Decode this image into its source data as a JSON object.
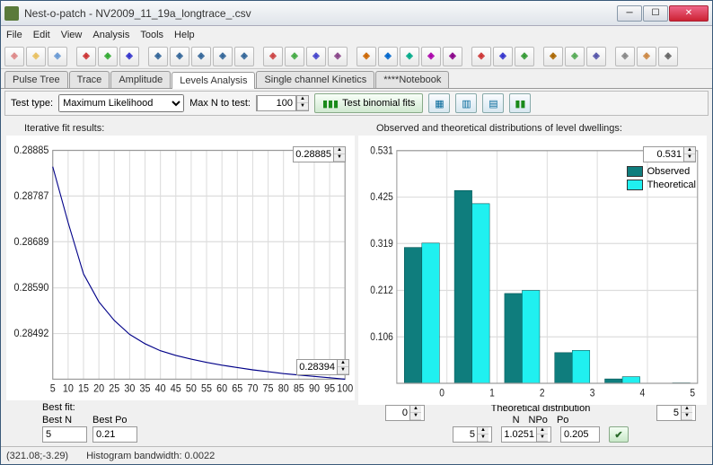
{
  "window": {
    "title": "Nest-o-patch - NV2009_11_19a_longtrace_.csv"
  },
  "menu": [
    "File",
    "Edit",
    "View",
    "Analysis",
    "Tools",
    "Help"
  ],
  "tabs": [
    "Pulse Tree",
    "Trace",
    "Amplitude",
    "Levels Analysis",
    "Single channel Kinetics",
    "****Notebook"
  ],
  "active_tab": 3,
  "controls": {
    "test_type_label": "Test type:",
    "test_type_value": "Maximum Likelihood",
    "maxn_label": "Max N to test:",
    "maxn_value": "100",
    "test_button": "Test binomial fits"
  },
  "left": {
    "title": "Iterative fit results:",
    "chart": {
      "type": "line",
      "x": [
        5,
        10,
        15,
        20,
        25,
        30,
        35,
        40,
        45,
        50,
        55,
        60,
        65,
        70,
        75,
        80,
        85,
        90,
        95,
        100
      ],
      "y": [
        0.2885,
        0.2873,
        0.2862,
        0.2856,
        0.2852,
        0.2849,
        0.2847,
        0.28455,
        0.28445,
        0.28437,
        0.2843,
        0.28424,
        0.28419,
        0.28414,
        0.2841,
        0.28406,
        0.28403,
        0.284,
        0.28397,
        0.28394
      ],
      "line_color": "#000088",
      "line_width": 1,
      "xlim": [
        5,
        100
      ],
      "ylim": [
        0.28394,
        0.28885
      ],
      "yticks": [
        0.28492,
        0.2859,
        0.28689,
        0.28787,
        0.28885
      ],
      "xticks": [
        5,
        10,
        15,
        20,
        25,
        30,
        35,
        40,
        45,
        50,
        55,
        60,
        65,
        70,
        75,
        80,
        85,
        90,
        95,
        100
      ],
      "grid_color": "#dddddd",
      "background": "#ffffff",
      "spin_hi": "0.28885",
      "spin_lo": "0.28394"
    },
    "bestfit_label": "Best fit:",
    "bestN_label": "Best N",
    "bestN_value": "5",
    "bestPo_label": "Best Po",
    "bestPo_value": "0.21"
  },
  "right": {
    "title": "Observed and theoretical distributions of level dwellings:",
    "chart": {
      "type": "grouped-bar",
      "categories": [
        "0",
        "1",
        "2",
        "3",
        "4",
        "5"
      ],
      "series": [
        {
          "name": "Observed",
          "color": "#0f7d7d",
          "values": [
            0.31,
            0.44,
            0.205,
            0.07,
            0.01,
            0.0
          ]
        },
        {
          "name": "Theoretical",
          "color": "#20f0f0",
          "values": [
            0.32,
            0.41,
            0.212,
            0.075,
            0.015,
            0.001
          ]
        }
      ],
      "ylim": [
        0,
        0.531
      ],
      "yticks": [
        0.106,
        0.212,
        0.319,
        0.425,
        0.531
      ],
      "xlim": [
        0,
        5
      ],
      "grid_color": "#dddddd",
      "background": "#ffffff",
      "spin_hi": "0.531",
      "legend_labels": [
        "Observed",
        "Theoretical"
      ],
      "bottom_left_spin": "0",
      "bottom_right_spin": "5"
    },
    "dist_label": "Theoretical distribution",
    "N_label": "N",
    "N_value": "5",
    "NPo_label": "NPo",
    "NPo_value": "1.0251",
    "Po_label": "Po",
    "Po_value": "0.205"
  },
  "status": {
    "coords": "(321.08;-3.29)",
    "bw": "Histogram bandwidth: 0.0022"
  },
  "colors": {
    "observed": "#0f7d7d",
    "theoretical": "#20f0f0",
    "accent_green": "#6aa84f"
  },
  "toolbar_icons": [
    "new",
    "open",
    "save",
    "|",
    "chart-line",
    "chart-area",
    "chart-scatter",
    "|",
    "panel1",
    "panel2",
    "panel3",
    "panel4",
    "panel5",
    "|",
    "axis1",
    "axis2",
    "axis3",
    "axis4",
    "|",
    "marker1",
    "marker2",
    "marker3",
    "marker4",
    "marker5",
    "|",
    "beta",
    "sigma",
    "fit",
    "|",
    "sel1",
    "sel2",
    "sel3",
    "|",
    "grid",
    "color",
    "settings"
  ]
}
